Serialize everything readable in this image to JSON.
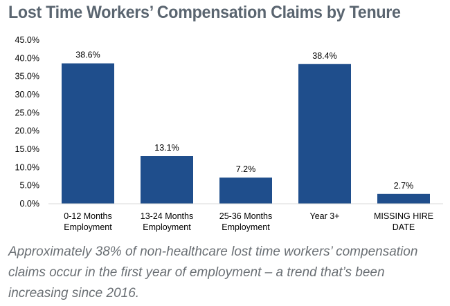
{
  "title": "Lost Time Workers’ Compensation Claims by Tenure",
  "caption": "Approximately 38% of non-healthcare lost time workers’ compensation claims occur in the first year of employment – a trend that’s been increasing since 2016.",
  "colors": {
    "bar": "#1f4e8c",
    "title": "#5a6570",
    "caption": "#6a6f74",
    "axis": "#d9d9d9"
  },
  "chart_data": {
    "type": "bar",
    "title": "Lost Time Workers’ Compensation Claims by Tenure",
    "categories": [
      [
        "0-12 Months",
        "Employment"
      ],
      [
        "13-24 Months",
        "Employment"
      ],
      [
        "25-36 Months",
        "Employment"
      ],
      [
        "Year 3+"
      ],
      [
        "MISSING HIRE",
        "DATE"
      ]
    ],
    "values": [
      38.6,
      13.1,
      7.2,
      38.4,
      2.7
    ],
    "data_labels": [
      "38.6%",
      "13.1%",
      "7.2%",
      "38.4%",
      "2.7%"
    ],
    "yticks": [
      0,
      5,
      10,
      15,
      20,
      25,
      30,
      35,
      40,
      45
    ],
    "ytick_labels": [
      "0.0%",
      "5.0%",
      "10.0%",
      "15.0%",
      "20.0%",
      "25.0%",
      "30.0%",
      "35.0%",
      "40.0%",
      "45.0%"
    ],
    "ylim": [
      0,
      45
    ],
    "xlabel": "",
    "ylabel": "",
    "grid": false,
    "legend": "none"
  }
}
